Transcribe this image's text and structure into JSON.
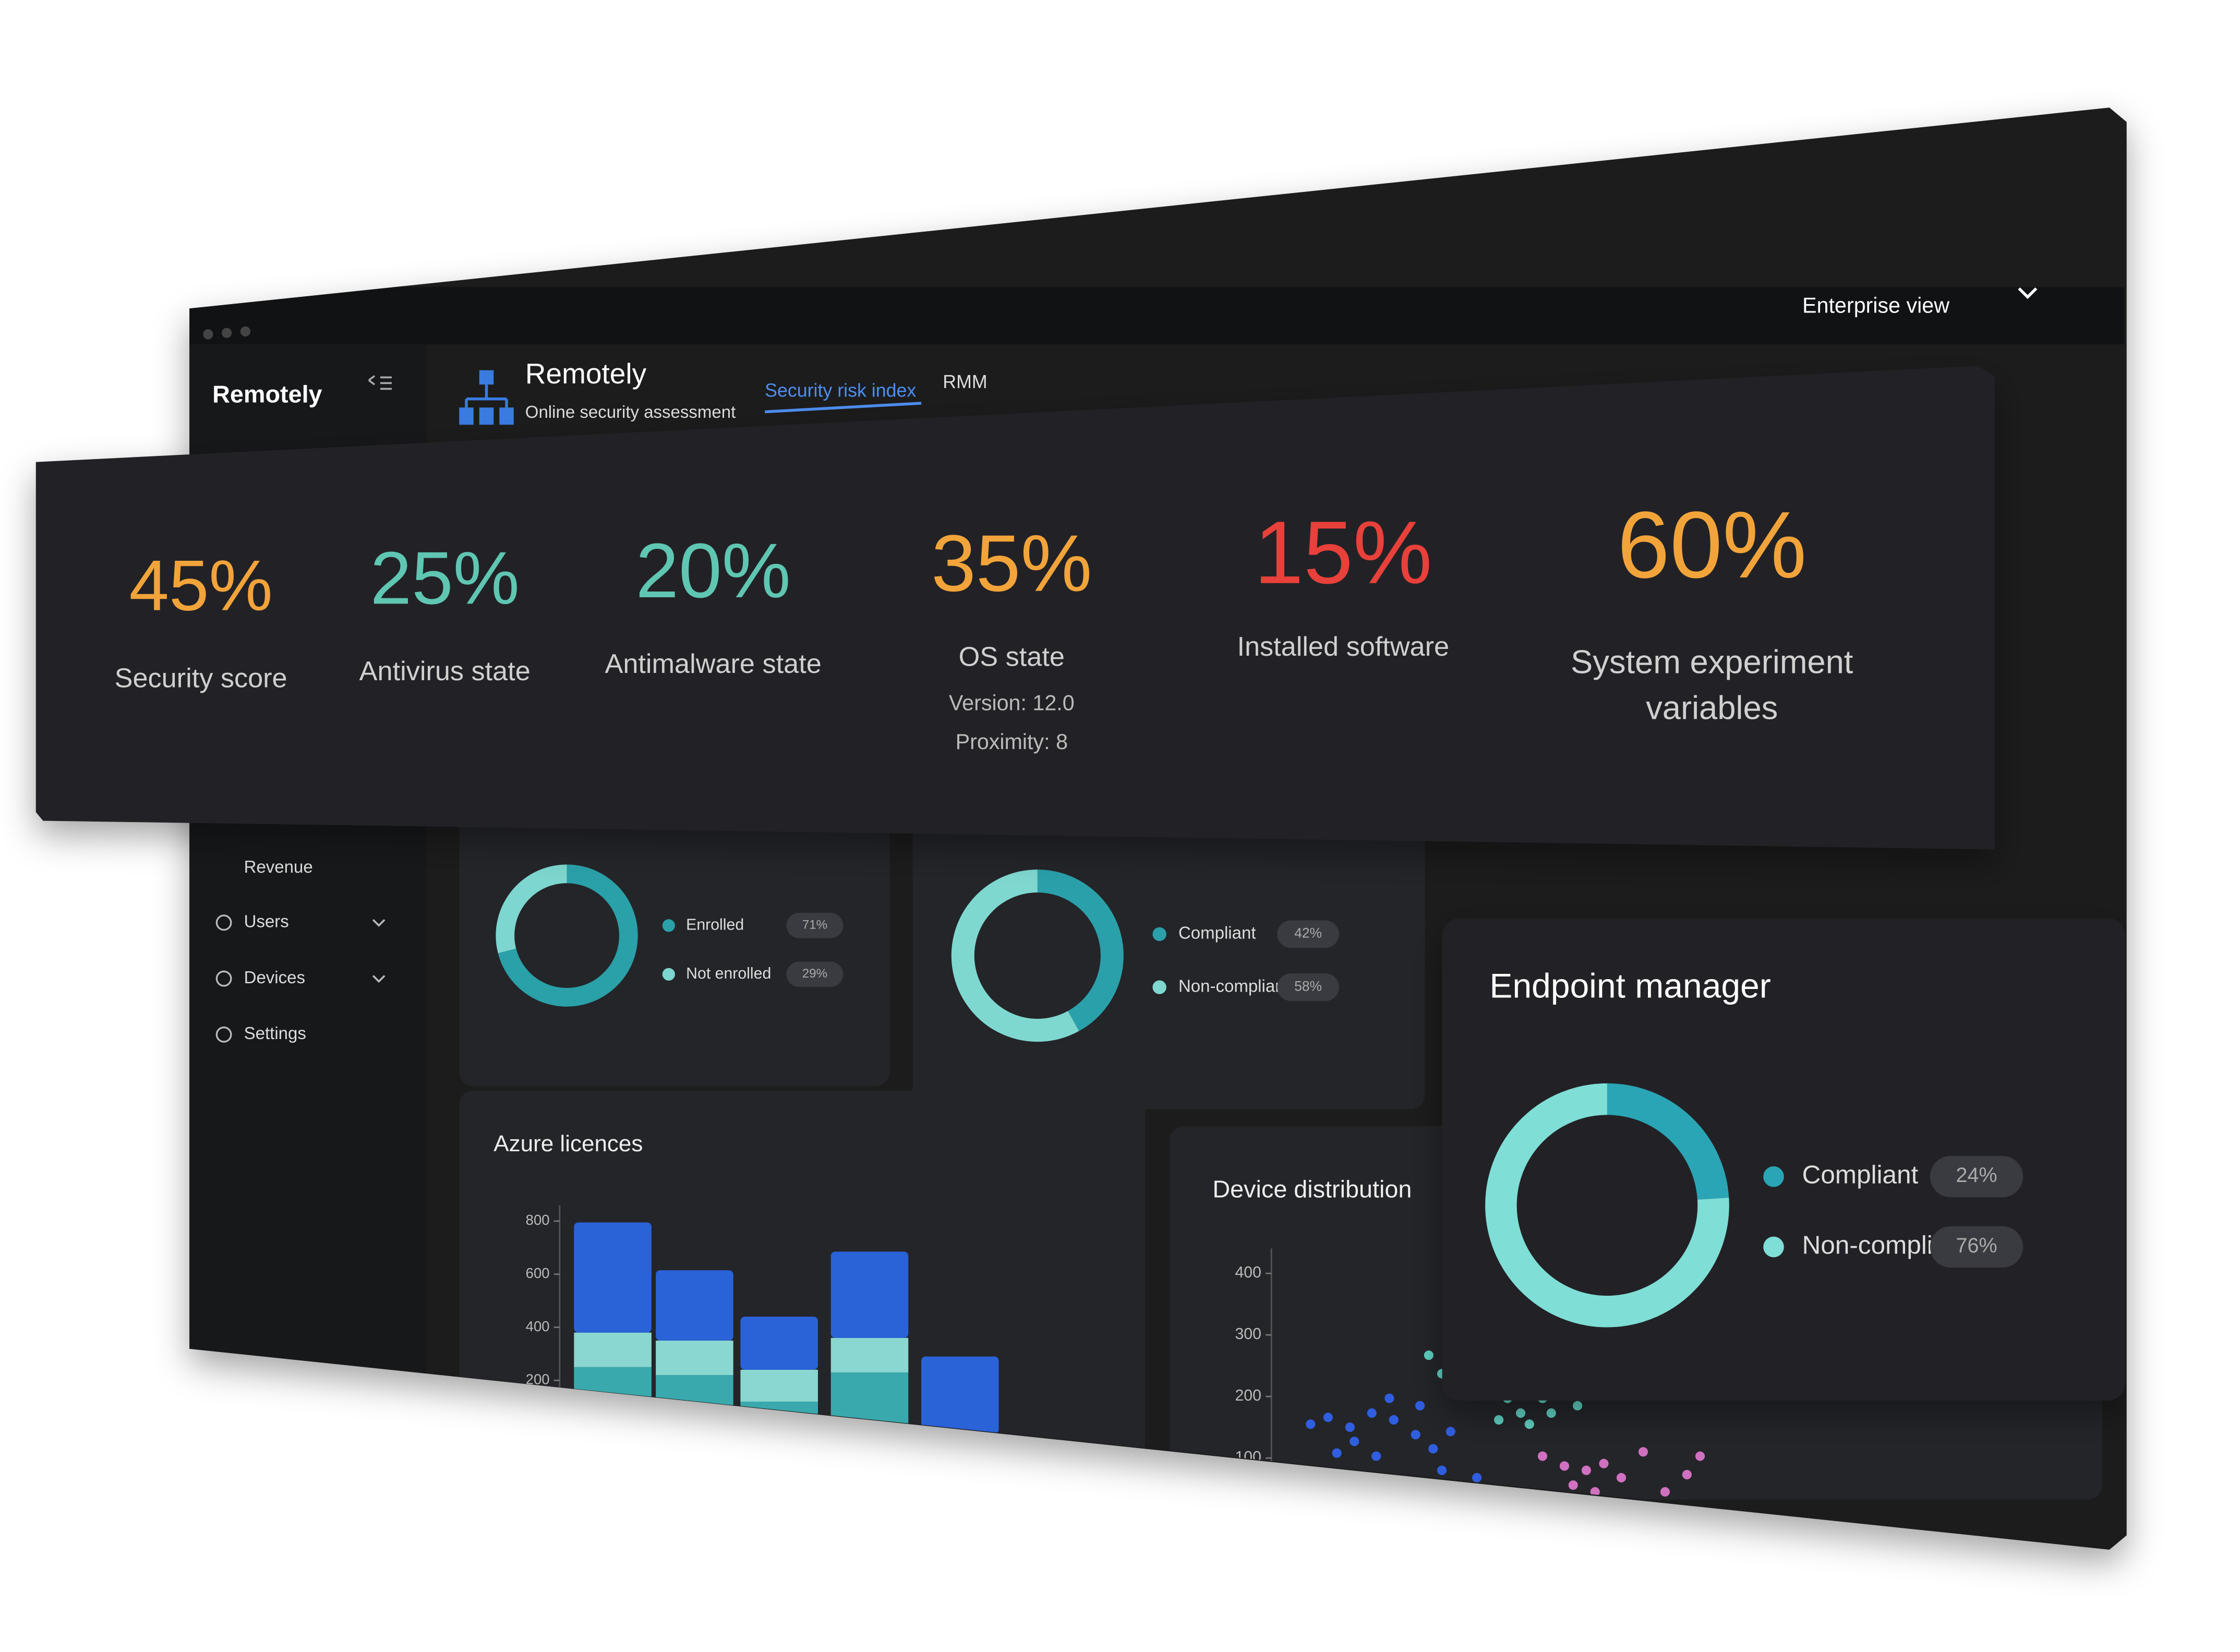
{
  "window": {
    "brand": "Remotely",
    "app_title": "Remotely",
    "app_subtitle": "Online security assessment",
    "tabs": [
      "Security risk index",
      "RMM"
    ],
    "view_selector": "Enterprise view"
  },
  "sidebar": {
    "items": [
      "Revenue",
      "Users",
      "Devices",
      "Settings"
    ]
  },
  "stats": [
    {
      "value": "45%",
      "color": "#f2a43a",
      "label_lines": [
        "Security score"
      ]
    },
    {
      "value": "25%",
      "color": "#5fc6b2",
      "label_lines": [
        "Antivirus state"
      ]
    },
    {
      "value": "20%",
      "color": "#5fc6b2",
      "label_lines": [
        "Antimalware state"
      ]
    },
    {
      "value": "35%",
      "color": "#f2a43a",
      "label_lines": [
        "OS state"
      ],
      "details": [
        "Version: 12.0",
        "Proximity: 8"
      ]
    },
    {
      "value": "15%",
      "color": "#e8403a",
      "label_lines": [
        "Installed software"
      ]
    },
    {
      "value": "60%",
      "color": "#f2a43a",
      "label_lines": [
        "System experiment",
        "variables"
      ]
    }
  ],
  "enrollment_card": {
    "items": [
      {
        "label": "Enrolled",
        "value": 71,
        "value_label": "71%",
        "color": "#2aa0a8"
      },
      {
        "label": "Not enrolled",
        "value": 29,
        "value_label": "29%",
        "color": "#7dd6cf"
      }
    ]
  },
  "compliance_card": {
    "items": [
      {
        "label": "Compliant",
        "value": 42,
        "value_label": "42%",
        "color": "#2aa0aa"
      },
      {
        "label": "Non-compliant",
        "value": 58,
        "value_label": "58%",
        "color": "#7fd8d0"
      }
    ]
  },
  "endpoint_manager": {
    "title": "Endpoint manager",
    "items": [
      {
        "label": "Compliant",
        "value": 24,
        "value_label": "24%",
        "color": "#2aa5b5"
      },
      {
        "label": "Non-compliant",
        "value": 76,
        "value_label": "76%",
        "color": "#7fded6"
      }
    ]
  },
  "chart_data": [
    {
      "type": "bar",
      "title": "Azure licences",
      "categories": [
        null,
        null,
        null,
        null,
        null
      ],
      "series": [
        {
          "color": "#3aa9ad",
          "values": [
            250,
            220,
            120,
            230,
            0
          ]
        },
        {
          "color": "#8ad6d0",
          "values": [
            130,
            130,
            120,
            130,
            0
          ]
        },
        {
          "color": "#2a62d8",
          "values": [
            415,
            265,
            200,
            325,
            290
          ]
        }
      ],
      "ylim": [
        0,
        800
      ],
      "yticks": [
        200,
        400,
        600,
        800
      ]
    },
    {
      "type": "scatter",
      "title": "Device distribution",
      "series": [
        {
          "color": "#2f5ee0",
          "x": [
            6,
            10,
            15,
            20,
            24,
            25,
            30,
            16,
            12,
            21,
            34,
            38,
            44,
            36,
            31
          ],
          "values": [
            155,
            166,
            150,
            173,
            197,
            162,
            138,
            127,
            108,
            103,
            115,
            143,
            68,
            80,
            185
          ]
        },
        {
          "color": "#5fd0c0",
          "x": [
            33,
            36,
            41,
            46,
            51,
            54,
            59,
            64,
            67,
            49,
            56,
            61
          ],
          "values": [
            267,
            237,
            220,
            213,
            197,
            173,
            197,
            209,
            185,
            162,
            155,
            173
          ]
        },
        {
          "color": "#d070c0",
          "x": [
            59,
            64,
            69,
            73,
            77,
            82,
            87,
            92,
            95,
            71,
            66
          ],
          "values": [
            103,
            87,
            80,
            91,
            68,
            110,
            45,
            73,
            103,
            45,
            56
          ]
        }
      ],
      "xlim": [
        0,
        100
      ],
      "ylim": [
        0,
        450
      ],
      "yticks": [
        100,
        200,
        300,
        400
      ]
    }
  ]
}
